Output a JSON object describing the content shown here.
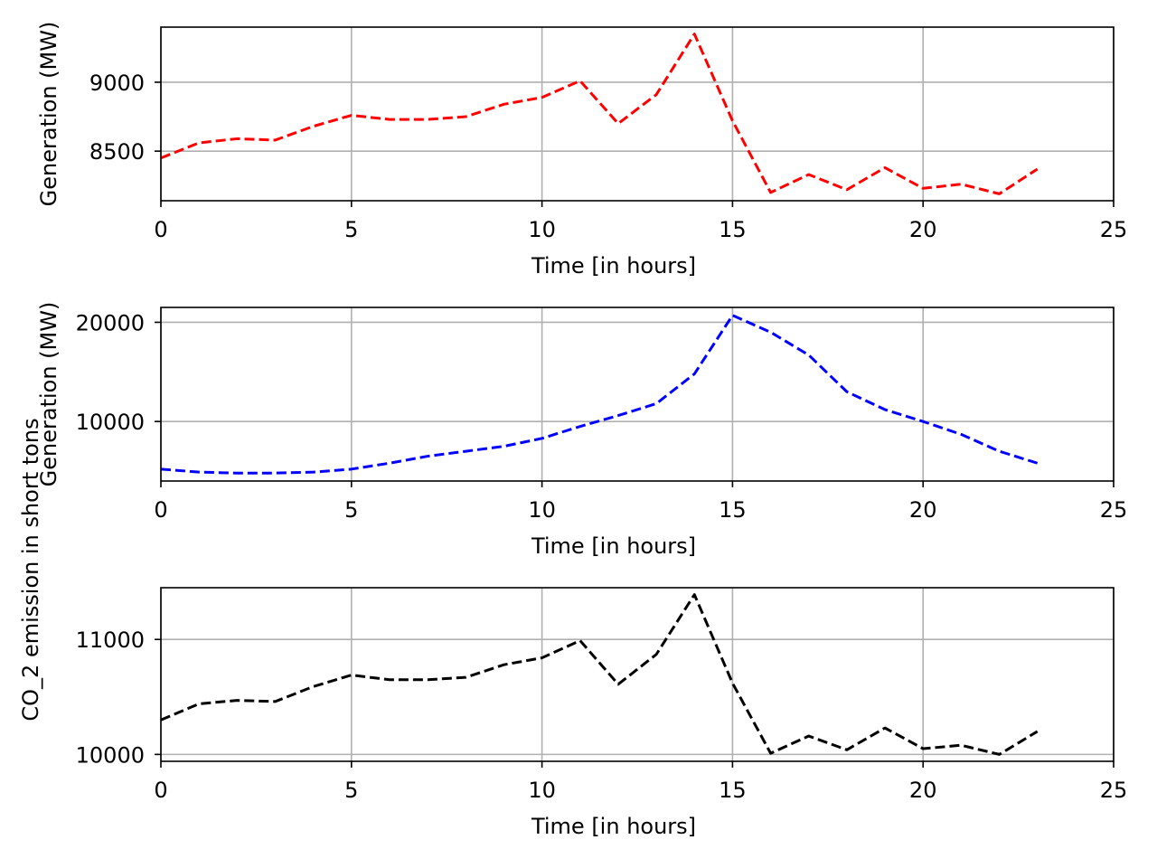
{
  "chart_data": [
    {
      "type": "line",
      "ylabel": "Generation (MW)",
      "xlabel": "Time [in hours]",
      "xlim": [
        0,
        25
      ],
      "ylim": [
        8140,
        9400
      ],
      "xticks": [
        0,
        5,
        10,
        15,
        20,
        25
      ],
      "yticks": [
        8500,
        9000
      ],
      "grid": true,
      "color": "#ff0000",
      "linestyle": "dashed",
      "series": [
        {
          "x": [
            0,
            1,
            2,
            3,
            4,
            5,
            6,
            7,
            8,
            9,
            10,
            11,
            12,
            13,
            14,
            15,
            16,
            17,
            18,
            19,
            20,
            21,
            22,
            23
          ],
          "values": [
            8450,
            8560,
            8590,
            8580,
            8680,
            8760,
            8730,
            8730,
            8750,
            8840,
            8890,
            9010,
            8700,
            8910,
            9350,
            8720,
            8200,
            8330,
            8220,
            8380,
            8230,
            8260,
            8190,
            8370
          ]
        }
      ]
    },
    {
      "type": "line",
      "ylabel": "Generation (MW)",
      "xlabel": "Time [in hours]",
      "xlim": [
        0,
        25
      ],
      "ylim": [
        4000,
        21500
      ],
      "xticks": [
        0,
        5,
        10,
        15,
        20,
        25
      ],
      "yticks": [
        10000,
        20000
      ],
      "grid": true,
      "color": "#0000ff",
      "linestyle": "dashed",
      "series": [
        {
          "x": [
            0,
            1,
            2,
            3,
            4,
            5,
            6,
            7,
            8,
            9,
            10,
            11,
            12,
            13,
            14,
            15,
            16,
            17,
            18,
            19,
            20,
            21,
            22,
            23
          ],
          "values": [
            5200,
            4900,
            4800,
            4800,
            4900,
            5200,
            5800,
            6500,
            7000,
            7500,
            8300,
            9500,
            10600,
            11800,
            14800,
            20700,
            19000,
            16700,
            13000,
            11200,
            10000,
            8700,
            7000,
            5800
          ]
        }
      ]
    },
    {
      "type": "line",
      "ylabel": "CO_2 emission in short tons",
      "xlabel": "Time [in hours]",
      "xlim": [
        0,
        25
      ],
      "ylim": [
        9940,
        11450
      ],
      "xticks": [
        0,
        5,
        10,
        15,
        20,
        25
      ],
      "yticks": [
        10000,
        11000
      ],
      "grid": true,
      "color": "#000000",
      "linestyle": "dashed",
      "series": [
        {
          "x": [
            0,
            1,
            2,
            3,
            4,
            5,
            6,
            7,
            8,
            9,
            10,
            11,
            12,
            13,
            14,
            15,
            16,
            17,
            18,
            19,
            20,
            21,
            22,
            23
          ],
          "values": [
            10300,
            10440,
            10470,
            10460,
            10590,
            10690,
            10650,
            10650,
            10670,
            10780,
            10840,
            10990,
            10610,
            10870,
            11390,
            10620,
            10010,
            10160,
            10040,
            10230,
            10050,
            10080,
            10000,
            10200
          ]
        }
      ]
    }
  ]
}
